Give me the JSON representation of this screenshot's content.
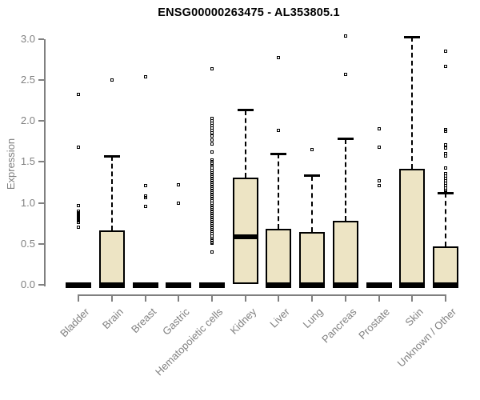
{
  "chart_data": {
    "type": "boxplot",
    "title": "ENSG00000263475 - AL353805.1",
    "ylabel": "Expression",
    "xlabel": "",
    "ylim": [
      0,
      3
    ],
    "yticks": [
      0,
      0.5,
      1,
      1.5,
      2,
      2.5,
      3
    ],
    "grid": false,
    "legend": "none",
    "categories": [
      "Bladder",
      "Brain",
      "Breast",
      "Gastric",
      "Hematopoietic cells",
      "Kidney",
      "Liver",
      "Lung",
      "Pancreas",
      "Prostate",
      "Skin",
      "Unknown / Other"
    ],
    "boxes": [
      {
        "category": "Bladder",
        "q1": 0,
        "median": 0,
        "q3": 0,
        "whisker_low": 0,
        "whisker_high": 0,
        "outliers": [
          2.32,
          1.68,
          0.97,
          0.9,
          0.88,
          0.86,
          0.84,
          0.82,
          0.8,
          0.78,
          0.76,
          0.7
        ]
      },
      {
        "category": "Brain",
        "q1": 0,
        "median": 0,
        "q3": 0.66,
        "whisker_low": 0,
        "whisker_high": 1.57,
        "outliers": [
          2.5
        ]
      },
      {
        "category": "Breast",
        "q1": 0,
        "median": 0,
        "q3": 0,
        "whisker_low": 0,
        "whisker_high": 0,
        "outliers": [
          2.54,
          1.21,
          1.08,
          1.06,
          0.96
        ]
      },
      {
        "category": "Gastric",
        "q1": 0,
        "median": 0,
        "q3": 0,
        "whisker_low": 0,
        "whisker_high": 0,
        "outliers": [
          1.22,
          1.0
        ]
      },
      {
        "category": "Hematopoietic cells",
        "q1": 0,
        "median": 0,
        "q3": 0,
        "whisker_low": 0,
        "whisker_high": 0,
        "outliers": [
          2.63,
          2.03,
          2.0,
          1.97,
          1.94,
          1.91,
          1.88,
          1.85,
          1.81,
          1.77,
          1.72,
          1.62,
          1.52,
          1.5,
          1.47,
          1.45,
          1.42,
          1.4,
          1.37,
          1.35,
          1.32,
          1.3,
          1.27,
          1.25,
          1.22,
          1.2,
          1.17,
          1.15,
          1.12,
          1.1,
          1.07,
          1.05,
          1.02,
          1.0,
          0.97,
          0.95,
          0.92,
          0.9,
          0.87,
          0.85,
          0.82,
          0.8,
          0.77,
          0.75,
          0.72,
          0.7,
          0.67,
          0.65,
          0.62,
          0.6,
          0.57,
          0.55,
          0.52,
          0.51,
          0.4
        ]
      },
      {
        "category": "Kidney",
        "q1": 0.01,
        "median": 0.59,
        "q3": 1.31,
        "whisker_low": 0,
        "whisker_high": 2.13,
        "outliers": []
      },
      {
        "category": "Liver",
        "q1": 0,
        "median": 0,
        "q3": 0.68,
        "whisker_low": 0,
        "whisker_high": 1.6,
        "outliers": [
          2.77,
          1.88
        ]
      },
      {
        "category": "Lung",
        "q1": 0,
        "median": 0,
        "q3": 0.64,
        "whisker_low": 0,
        "whisker_high": 1.33,
        "outliers": [
          1.65
        ]
      },
      {
        "category": "Pancreas",
        "q1": 0,
        "median": 0,
        "q3": 0.78,
        "whisker_low": 0,
        "whisker_high": 1.78,
        "outliers": [
          3.03,
          2.57
        ]
      },
      {
        "category": "Prostate",
        "q1": 0,
        "median": 0,
        "q3": 0,
        "whisker_low": 0,
        "whisker_high": 0,
        "outliers": [
          1.9,
          1.68,
          1.27,
          1.21
        ]
      },
      {
        "category": "Skin",
        "q1": 0,
        "median": 0,
        "q3": 1.41,
        "whisker_low": 0,
        "whisker_high": 3.02,
        "outliers": []
      },
      {
        "category": "Unknown / Other",
        "q1": 0,
        "median": 0,
        "q3": 0.47,
        "whisker_low": 0,
        "whisker_high": 1.12,
        "outliers": [
          2.85,
          2.66,
          1.89,
          1.87,
          1.71,
          1.67,
          1.6,
          1.57,
          1.42,
          1.36,
          1.33,
          1.3,
          1.27,
          1.24,
          1.21,
          1.18,
          1.15,
          1.13
        ]
      }
    ],
    "colors": {
      "box_fill": "#EDE4C4",
      "box_border": "#000000",
      "median": "#000000",
      "axis": "#808080",
      "tick_label": "#808080",
      "title": "#000000",
      "background": "#FFFFFF"
    }
  }
}
